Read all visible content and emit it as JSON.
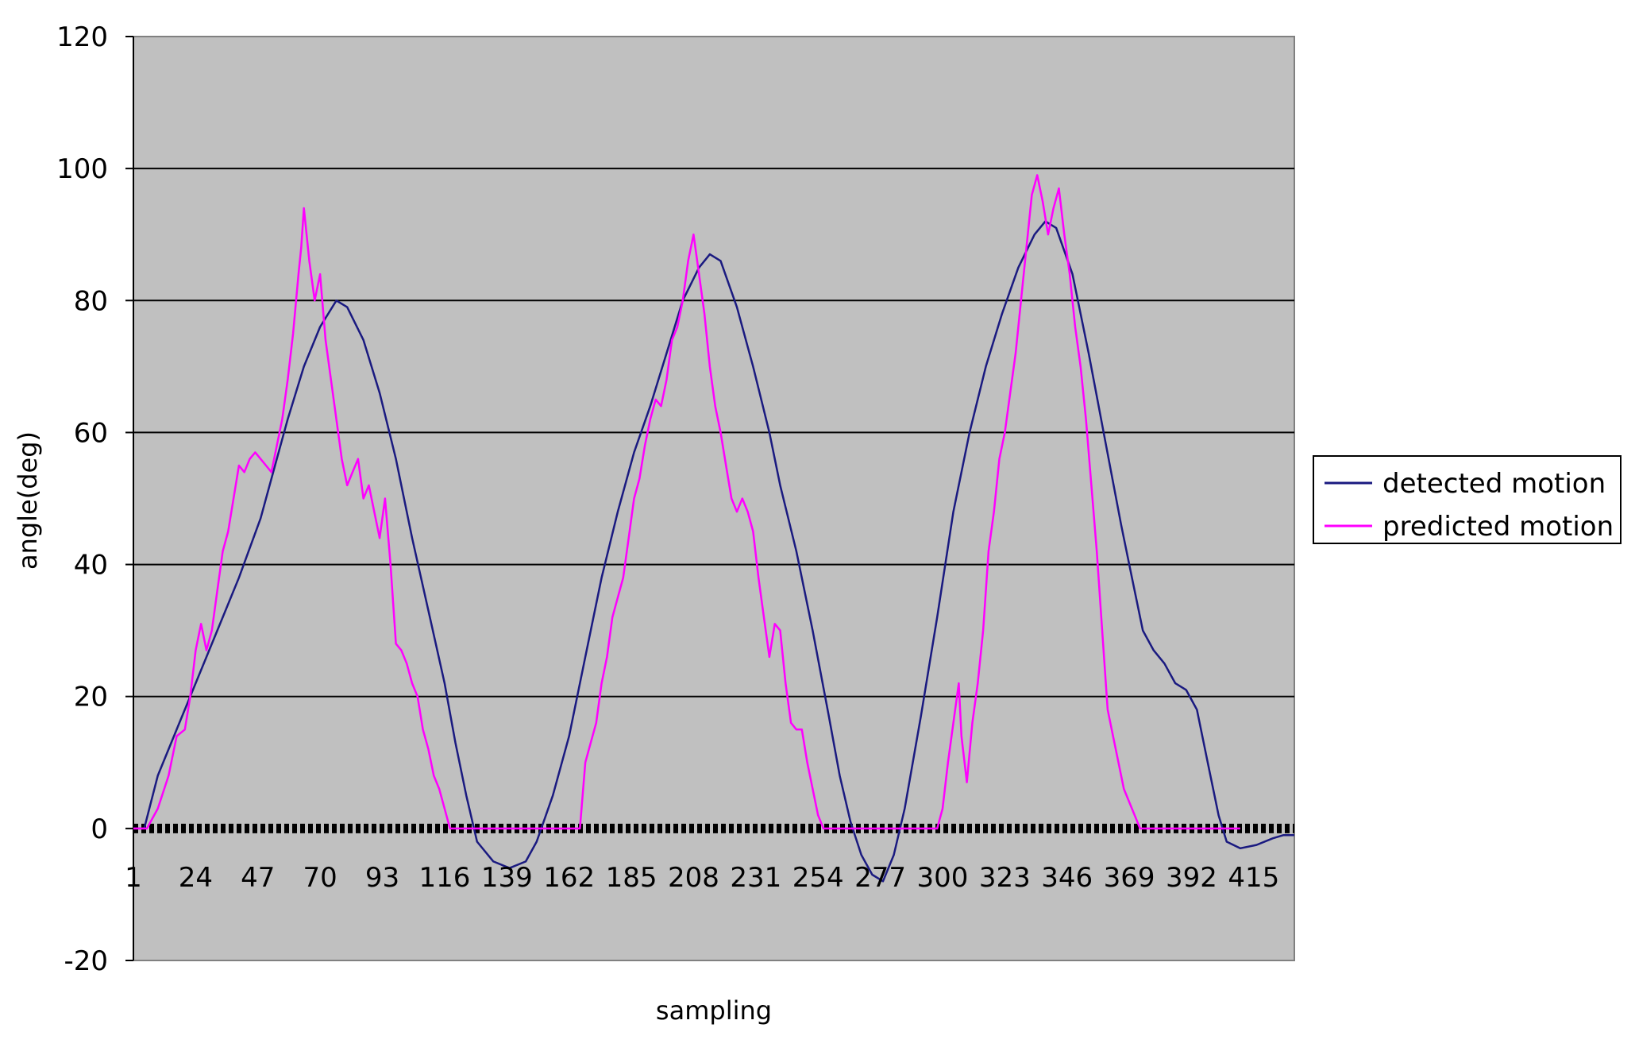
{
  "colors": {
    "plot_background": "#c0c0c0",
    "detected": "#1a1a80",
    "predicted": "#ff00ff",
    "gridline": "#000000"
  },
  "chart_data": {
    "type": "line",
    "title": "",
    "xlabel": "sampling",
    "ylabel": "angle(deg)",
    "ylim": [
      -20,
      120
    ],
    "yticks": [
      -20,
      0,
      20,
      40,
      60,
      80,
      100,
      120
    ],
    "xlim": [
      1,
      430
    ],
    "xticks": [
      1,
      24,
      47,
      70,
      93,
      116,
      139,
      162,
      185,
      208,
      231,
      254,
      277,
      300,
      323,
      346,
      369,
      392,
      415
    ],
    "grid": "horizontal",
    "legend_position": "right",
    "series": [
      {
        "name": "detected motion",
        "color": "#1a1a80",
        "points": [
          [
            1,
            0
          ],
          [
            5,
            0
          ],
          [
            10,
            8
          ],
          [
            18,
            16
          ],
          [
            26,
            24
          ],
          [
            34,
            32
          ],
          [
            40,
            38
          ],
          [
            48,
            47
          ],
          [
            54,
            56
          ],
          [
            58,
            62
          ],
          [
            64,
            70
          ],
          [
            70,
            76
          ],
          [
            76,
            80
          ],
          [
            80,
            79
          ],
          [
            86,
            74
          ],
          [
            92,
            66
          ],
          [
            98,
            56
          ],
          [
            104,
            44
          ],
          [
            110,
            33
          ],
          [
            116,
            22
          ],
          [
            120,
            13
          ],
          [
            124,
            5
          ],
          [
            128,
            -2
          ],
          [
            134,
            -5
          ],
          [
            140,
            -6
          ],
          [
            146,
            -5
          ],
          [
            150,
            -2
          ],
          [
            156,
            5
          ],
          [
            162,
            14
          ],
          [
            168,
            26
          ],
          [
            174,
            38
          ],
          [
            180,
            48
          ],
          [
            186,
            57
          ],
          [
            192,
            64
          ],
          [
            198,
            72
          ],
          [
            204,
            80
          ],
          [
            210,
            85
          ],
          [
            214,
            87
          ],
          [
            218,
            86
          ],
          [
            224,
            79
          ],
          [
            230,
            70
          ],
          [
            236,
            60
          ],
          [
            240,
            52
          ],
          [
            246,
            42
          ],
          [
            252,
            30
          ],
          [
            258,
            17
          ],
          [
            262,
            8
          ],
          [
            266,
            1
          ],
          [
            270,
            -4
          ],
          [
            274,
            -7
          ],
          [
            278,
            -8
          ],
          [
            282,
            -4
          ],
          [
            286,
            3
          ],
          [
            292,
            17
          ],
          [
            298,
            32
          ],
          [
            304,
            48
          ],
          [
            310,
            60
          ],
          [
            316,
            70
          ],
          [
            322,
            78
          ],
          [
            328,
            85
          ],
          [
            334,
            90
          ],
          [
            338,
            92
          ],
          [
            342,
            91
          ],
          [
            348,
            84
          ],
          [
            354,
            72
          ],
          [
            360,
            59
          ],
          [
            366,
            46
          ],
          [
            370,
            38
          ],
          [
            374,
            30
          ],
          [
            378,
            27
          ],
          [
            382,
            25
          ],
          [
            386,
            22
          ],
          [
            390,
            21
          ],
          [
            394,
            18
          ],
          [
            398,
            10
          ],
          [
            402,
            2
          ],
          [
            405,
            -2
          ],
          [
            410,
            -3
          ],
          [
            416,
            -2.5
          ],
          [
            422,
            -1.5
          ],
          [
            426,
            -1
          ],
          [
            430,
            -1
          ]
        ]
      },
      {
        "name": "predicted motion",
        "color": "#ff00ff",
        "points": [
          [
            1,
            0
          ],
          [
            6,
            0
          ],
          [
            10,
            3
          ],
          [
            14,
            8
          ],
          [
            17,
            14
          ],
          [
            20,
            15
          ],
          [
            22,
            20
          ],
          [
            24,
            27
          ],
          [
            26,
            31
          ],
          [
            28,
            27
          ],
          [
            30,
            30
          ],
          [
            32,
            36
          ],
          [
            34,
            42
          ],
          [
            36,
            45
          ],
          [
            38,
            50
          ],
          [
            40,
            55
          ],
          [
            42,
            54
          ],
          [
            44,
            56
          ],
          [
            46,
            57
          ],
          [
            48,
            56
          ],
          [
            50,
            55
          ],
          [
            52,
            54
          ],
          [
            54,
            58
          ],
          [
            56,
            62
          ],
          [
            58,
            68
          ],
          [
            60,
            75
          ],
          [
            62,
            84
          ],
          [
            63,
            88
          ],
          [
            64,
            94
          ],
          [
            66,
            86
          ],
          [
            68,
            80
          ],
          [
            70,
            84
          ],
          [
            72,
            74
          ],
          [
            74,
            68
          ],
          [
            76,
            62
          ],
          [
            78,
            56
          ],
          [
            80,
            52
          ],
          [
            82,
            54
          ],
          [
            84,
            56
          ],
          [
            86,
            50
          ],
          [
            88,
            52
          ],
          [
            90,
            48
          ],
          [
            92,
            44
          ],
          [
            94,
            50
          ],
          [
            96,
            40
          ],
          [
            98,
            28
          ],
          [
            100,
            27
          ],
          [
            102,
            25
          ],
          [
            104,
            22
          ],
          [
            106,
            20
          ],
          [
            108,
            15
          ],
          [
            110,
            12
          ],
          [
            112,
            8
          ],
          [
            114,
            6
          ],
          [
            116,
            3
          ],
          [
            118,
            0
          ],
          [
            162,
            0
          ],
          [
            166,
            0
          ],
          [
            168,
            10
          ],
          [
            170,
            13
          ],
          [
            172,
            16
          ],
          [
            174,
            22
          ],
          [
            176,
            26
          ],
          [
            178,
            32
          ],
          [
            180,
            35
          ],
          [
            182,
            38
          ],
          [
            184,
            44
          ],
          [
            186,
            50
          ],
          [
            188,
            53
          ],
          [
            190,
            58
          ],
          [
            192,
            62
          ],
          [
            194,
            65
          ],
          [
            196,
            64
          ],
          [
            198,
            68
          ],
          [
            200,
            74
          ],
          [
            202,
            76
          ],
          [
            204,
            80
          ],
          [
            206,
            86
          ],
          [
            208,
            90
          ],
          [
            210,
            84
          ],
          [
            212,
            78
          ],
          [
            214,
            70
          ],
          [
            216,
            64
          ],
          [
            218,
            60
          ],
          [
            220,
            55
          ],
          [
            222,
            50
          ],
          [
            224,
            48
          ],
          [
            226,
            50
          ],
          [
            228,
            48
          ],
          [
            230,
            45
          ],
          [
            232,
            38
          ],
          [
            234,
            32
          ],
          [
            236,
            26
          ],
          [
            238,
            31
          ],
          [
            240,
            30
          ],
          [
            242,
            22
          ],
          [
            244,
            16
          ],
          [
            246,
            15
          ],
          [
            248,
            15
          ],
          [
            250,
            10
          ],
          [
            252,
            6
          ],
          [
            254,
            2
          ],
          [
            256,
            0
          ],
          [
            298,
            0
          ],
          [
            300,
            3
          ],
          [
            302,
            10
          ],
          [
            304,
            16
          ],
          [
            306,
            22
          ],
          [
            307,
            14
          ],
          [
            309,
            7
          ],
          [
            311,
            16
          ],
          [
            313,
            22
          ],
          [
            315,
            30
          ],
          [
            317,
            42
          ],
          [
            319,
            48
          ],
          [
            321,
            56
          ],
          [
            323,
            60
          ],
          [
            325,
            66
          ],
          [
            327,
            72
          ],
          [
            329,
            80
          ],
          [
            331,
            88
          ],
          [
            333,
            96
          ],
          [
            335,
            99
          ],
          [
            337,
            95
          ],
          [
            339,
            90
          ],
          [
            341,
            94
          ],
          [
            343,
            97
          ],
          [
            345,
            90
          ],
          [
            347,
            84
          ],
          [
            349,
            76
          ],
          [
            351,
            70
          ],
          [
            353,
            62
          ],
          [
            355,
            52
          ],
          [
            357,
            42
          ],
          [
            359,
            30
          ],
          [
            361,
            18
          ],
          [
            363,
            14
          ],
          [
            365,
            10
          ],
          [
            367,
            6
          ],
          [
            369,
            4
          ],
          [
            371,
            2
          ],
          [
            373,
            0
          ],
          [
            410,
            0
          ]
        ]
      }
    ]
  }
}
